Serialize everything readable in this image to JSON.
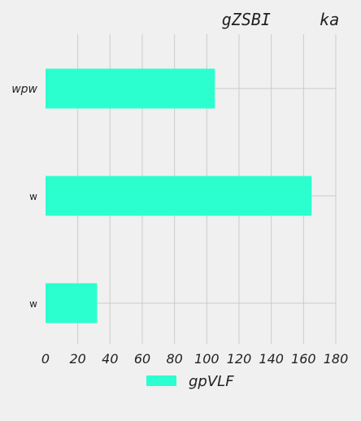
{
  "chart_data": {
    "type": "bar",
    "orientation": "horizontal",
    "title": "gZSBI     ka",
    "categories": [
      "wpw",
      "w",
      "w"
    ],
    "series": [
      {
        "name": "gpVLF",
        "values": [
          105,
          165,
          32
        ],
        "color": "#2bffcf"
      }
    ],
    "xlim": [
      0,
      180
    ],
    "xticks": [
      0,
      20,
      40,
      60,
      80,
      100,
      120,
      140,
      160,
      180
    ],
    "xlabel": "",
    "ylabel": "",
    "grid": true,
    "legend_position": "bottom-center",
    "background": "#f0f0f0"
  }
}
